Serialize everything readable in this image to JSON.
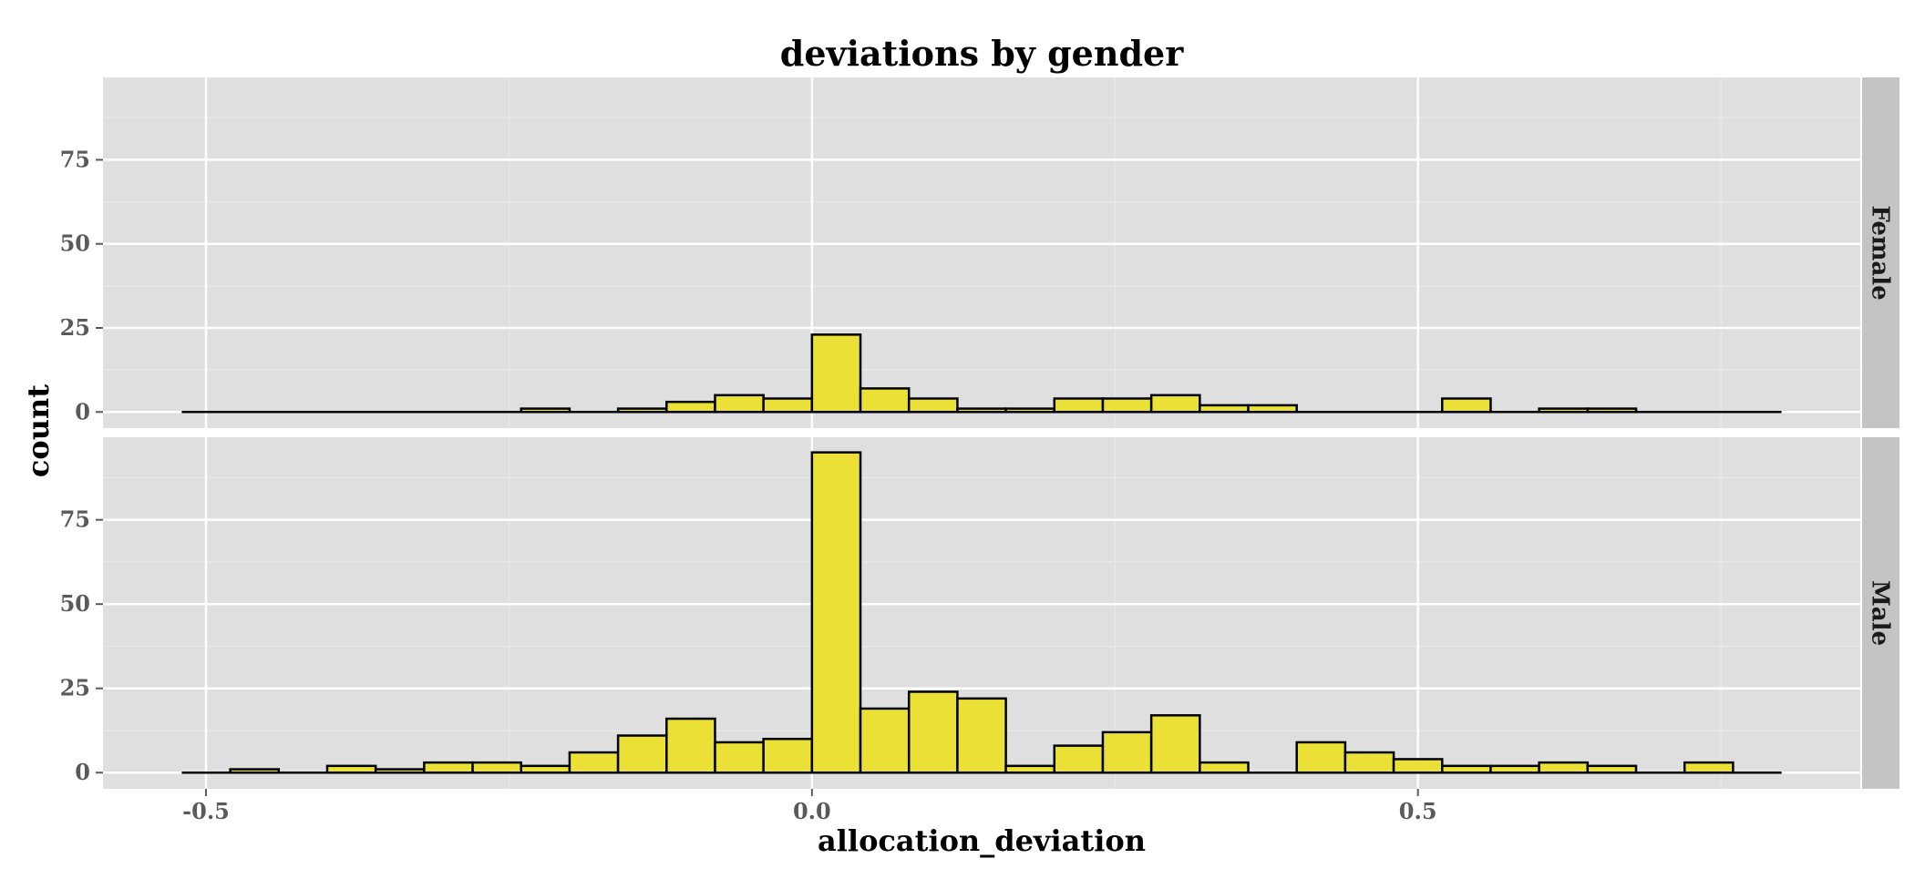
{
  "chart_data": {
    "type": "bar",
    "title": "deviations by gender",
    "xlabel": "allocation_deviation",
    "ylabel": "count",
    "x_ticks": [
      -0.5,
      0.0,
      0.5
    ],
    "x_tick_labels": [
      "-0.5",
      "0.0",
      "0.5"
    ],
    "y_ticks": [
      0,
      25,
      50,
      75
    ],
    "y_tick_labels": [
      "0",
      "25",
      "50",
      "75"
    ],
    "xlim": [
      -0.585,
      0.865
    ],
    "ylim": [
      -4.8,
      99.5
    ],
    "grid": true,
    "bin_width": 0.04,
    "bin_start": -0.52,
    "colors": {
      "bar_fill": "#EBE035",
      "bar_stroke": "#000000",
      "panel_bg": "#DFDFDF",
      "grid_major": "#FFFFFF",
      "grid_minor": "#EBEBEB",
      "strip_bg": "#C4C4C4"
    },
    "facets": [
      {
        "label": "Female",
        "values": [
          0,
          0,
          0,
          0,
          0,
          0,
          0,
          1,
          0,
          1,
          3,
          5,
          4,
          23,
          7,
          4,
          1,
          1,
          4,
          4,
          5,
          2,
          2,
          0,
          0,
          0,
          4,
          0,
          1,
          1,
          0,
          0,
          0
        ]
      },
      {
        "label": "Male",
        "values": [
          0,
          1,
          0,
          2,
          1,
          3,
          3,
          2,
          6,
          11,
          16,
          9,
          10,
          95,
          19,
          24,
          22,
          2,
          8,
          12,
          17,
          3,
          0,
          9,
          6,
          4,
          2,
          2,
          3,
          2,
          0,
          3,
          0
        ]
      }
    ]
  }
}
